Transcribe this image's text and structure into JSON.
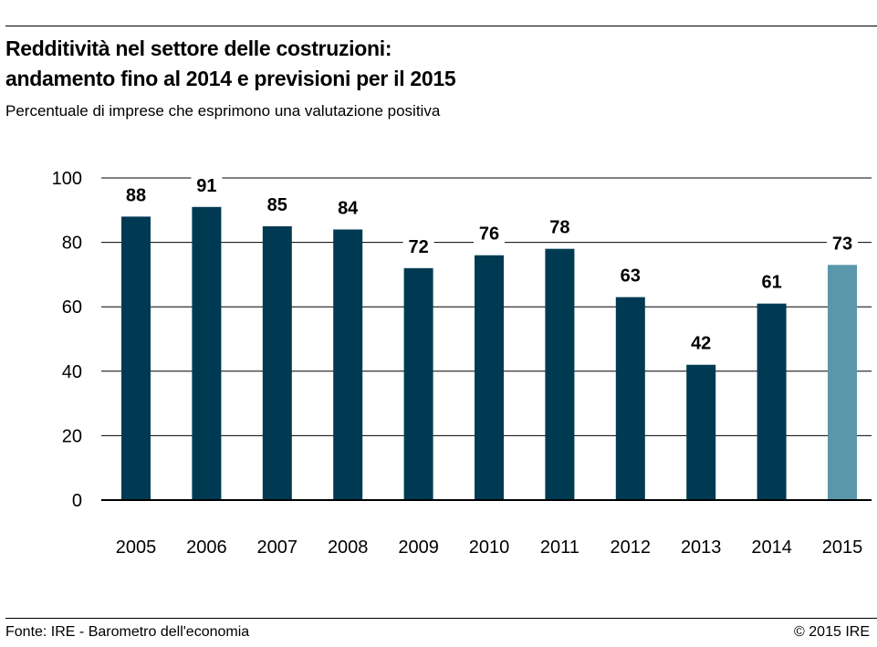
{
  "header": {
    "title_line1": "Redditività nel settore delle costruzioni:",
    "title_line2": "andamento fino al 2014 e previsioni per il 2015",
    "subtitle": "Percentuale di imprese che esprimono una valutazione positiva"
  },
  "footer": {
    "source": "Fonte: IRE - Barometro dell'economia",
    "copyright": "© 2015 IRE"
  },
  "colors": {
    "actual": "#003a52",
    "forecast": "#5a97ab",
    "grid": "#000000",
    "text": "#000000"
  },
  "chart_data": {
    "type": "bar",
    "title": "Redditività nel settore delle costruzioni: andamento fino al 2014 e previsioni per il 2015",
    "subtitle": "Percentuale di imprese che esprimono una valutazione positiva",
    "xlabel": "",
    "ylabel": "",
    "categories": [
      "2005",
      "2006",
      "2007",
      "2008",
      "2009",
      "2010",
      "2011",
      "2012",
      "2013",
      "2014",
      "2015"
    ],
    "values": [
      88,
      91,
      85,
      84,
      72,
      76,
      78,
      63,
      42,
      61,
      73
    ],
    "data_labels": [
      "88",
      "91",
      "85",
      "84",
      "72",
      "76",
      "78",
      "63",
      "42",
      "61",
      "73"
    ],
    "forecast_categories": [
      "2015"
    ],
    "ylim": [
      0,
      100
    ],
    "yticks": [
      "0",
      "20",
      "40",
      "60",
      "80",
      "100"
    ],
    "grid": true,
    "legend": "none"
  }
}
